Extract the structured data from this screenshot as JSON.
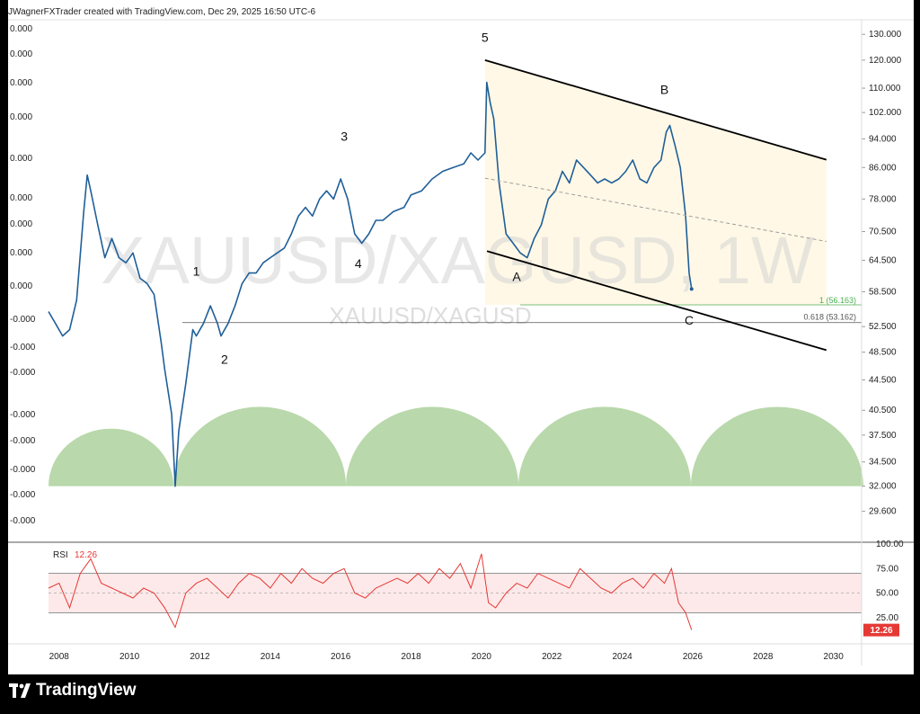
{
  "header": {
    "credit": "JWagnerFXTrader created with TradingView.com, Dec 29, 2025 16:50 UTC-6"
  },
  "watermark": {
    "big": "XAUUSD/XAGUSD, 1W",
    "small": "XAUUSD/XAGUSD"
  },
  "brand": {
    "name": "TradingView"
  },
  "left_axis_labels": [
    "0.000",
    "0.000",
    "0.000",
    "0.000",
    "0.000",
    "0.000",
    "0.000",
    "0.000",
    "0.000",
    "-0.000",
    "-0.000",
    "-0.000",
    "-0.000",
    "-0.000",
    "-0.000",
    "-0.000",
    "-0.000"
  ],
  "colors": {
    "price": "#1f5f99",
    "rsi": "#e53935",
    "channel": "#fff8e6",
    "arcs": "#b5d6a7",
    "fib1": "#4caf50",
    "fib618": "#555555"
  },
  "chart_data": {
    "type": "line",
    "title": "XAUUSD/XAGUSD, 1W",
    "x_ticks": [
      "2008",
      "2010",
      "2012",
      "2014",
      "2016",
      "2018",
      "2020",
      "2022",
      "2024",
      "2026",
      "2028",
      "2030"
    ],
    "y_scale": "log",
    "y_ticks": [
      130,
      120,
      110,
      102,
      94,
      86,
      78,
      70.5,
      64.5,
      58.5,
      52.5,
      48.5,
      44.5,
      40.5,
      37.5,
      34.5,
      32,
      29.6
    ],
    "y_labels": [
      "130.000",
      "120.000",
      "110.000",
      "102.000",
      "94.000",
      "86.000",
      "78.000",
      "70.500",
      "64.500",
      "58.500",
      "52.500",
      "48.500",
      "44.500",
      "40.500",
      "37.500",
      "34.500",
      "32.000",
      "29.600"
    ],
    "xlim": [
      2007.7,
      2030.8
    ],
    "ylim": [
      27.5,
      136
    ],
    "series": [
      {
        "x": [
          2007.7,
          2007.9,
          2008.1,
          2008.3,
          2008.5,
          2008.7,
          2008.8,
          2008.9,
          2009.1,
          2009.3,
          2009.5,
          2009.7,
          2009.9,
          2010.1,
          2010.3,
          2010.5,
          2010.7,
          2010.9,
          2011.0,
          2011.2,
          2011.3,
          2011.4,
          2011.6,
          2011.8,
          2011.9,
          2012.1,
          2012.3,
          2012.5,
          2012.6,
          2012.8,
          2013.0,
          2013.2,
          2013.4,
          2013.6,
          2013.8,
          2014.0,
          2014.2,
          2014.4,
          2014.6,
          2014.8,
          2015.0,
          2015.2,
          2015.4,
          2015.6,
          2015.8,
          2016.0,
          2016.2,
          2016.4,
          2016.6,
          2016.8,
          2017.0,
          2017.2,
          2017.5,
          2017.8,
          2018.0,
          2018.3,
          2018.6,
          2018.9,
          2019.2,
          2019.5,
          2019.7,
          2019.9,
          2020.1,
          2020.15,
          2020.25,
          2020.35,
          2020.5,
          2020.7,
          2020.9,
          2021.1,
          2021.3,
          2021.5,
          2021.7,
          2021.9,
          2022.1,
          2022.3,
          2022.5,
          2022.7,
          2022.9,
          2023.1,
          2023.3,
          2023.5,
          2023.7,
          2023.9,
          2024.1,
          2024.3,
          2024.5,
          2024.7,
          2024.9,
          2025.1,
          2025.25,
          2025.35,
          2025.5,
          2025.65,
          2025.8,
          2025.9,
          2025.97
        ],
        "y": [
          55,
          53,
          51,
          52,
          57,
          75,
          84,
          80,
          72,
          65,
          69,
          65,
          64,
          66,
          61,
          60,
          58,
          50,
          46,
          40,
          32,
          38,
          44,
          52,
          51,
          53,
          56,
          53,
          51,
          53,
          56,
          60,
          62,
          62,
          64,
          65,
          66,
          67,
          70,
          74,
          76,
          74,
          78,
          80,
          78,
          83,
          78,
          70,
          68,
          70,
          73,
          73,
          75,
          76,
          79,
          80,
          83,
          85,
          86,
          87,
          90,
          88,
          90,
          112,
          105,
          100,
          82,
          70,
          68,
          66,
          65,
          69,
          72,
          78,
          80,
          85,
          82,
          88,
          86,
          84,
          82,
          83,
          82,
          83,
          85,
          88,
          83,
          82,
          86,
          88,
          96,
          98,
          92,
          86,
          74,
          62,
          59
        ]
      },
      {
        "name": "RSI",
        "x": [
          2007.7,
          2008.0,
          2008.3,
          2008.6,
          2008.9,
          2009.2,
          2009.5,
          2009.8,
          2010.1,
          2010.4,
          2010.7,
          2011.0,
          2011.3,
          2011.6,
          2011.9,
          2012.2,
          2012.5,
          2012.8,
          2013.1,
          2013.4,
          2013.7,
          2014.0,
          2014.3,
          2014.6,
          2014.9,
          2015.2,
          2015.5,
          2015.8,
          2016.1,
          2016.4,
          2016.7,
          2017.0,
          2017.3,
          2017.6,
          2017.9,
          2018.2,
          2018.5,
          2018.8,
          2019.1,
          2019.4,
          2019.7,
          2020.0,
          2020.2,
          2020.4,
          2020.7,
          2021.0,
          2021.3,
          2021.6,
          2021.9,
          2022.2,
          2022.5,
          2022.8,
          2023.1,
          2023.4,
          2023.7,
          2024.0,
          2024.3,
          2024.6,
          2024.9,
          2025.2,
          2025.4,
          2025.6,
          2025.8,
          2025.97
        ],
        "y": [
          55,
          60,
          35,
          70,
          85,
          60,
          55,
          50,
          45,
          55,
          50,
          35,
          15,
          50,
          60,
          65,
          55,
          45,
          60,
          70,
          65,
          55,
          70,
          60,
          75,
          65,
          60,
          70,
          75,
          50,
          45,
          55,
          60,
          65,
          60,
          70,
          60,
          75,
          65,
          80,
          55,
          90,
          40,
          35,
          50,
          60,
          55,
          70,
          65,
          60,
          55,
          75,
          65,
          55,
          50,
          60,
          65,
          55,
          70,
          60,
          75,
          40,
          30,
          12.26
        ]
      }
    ],
    "rsi": {
      "label": "RSI",
      "value": "12.26",
      "levels": [
        70,
        30
      ],
      "ticks": [
        "100.00",
        "75.00",
        "50.00",
        "25.00"
      ],
      "y_ticks": [
        100,
        75,
        50,
        25
      ]
    },
    "wave_labels": [
      {
        "text": "1",
        "x": 2011.9,
        "y": 61.5
      },
      {
        "text": "2",
        "x": 2012.7,
        "y": 46.8
      },
      {
        "text": "3",
        "x": 2016.1,
        "y": 93.5
      },
      {
        "text": "4",
        "x": 2016.5,
        "y": 63.0
      },
      {
        "text": "5",
        "x": 2020.1,
        "y": 127.0
      },
      {
        "text": "A",
        "x": 2021.0,
        "y": 60.5
      },
      {
        "text": "B",
        "x": 2025.2,
        "y": 108.0
      },
      {
        "text": "C",
        "x": 2025.9,
        "y": 52.8
      }
    ],
    "fib_levels": [
      {
        "label": "1 (56.163)",
        "value": 56.163
      },
      {
        "label": "0.618 (53.162)",
        "value": 53.162
      }
    ]
  }
}
